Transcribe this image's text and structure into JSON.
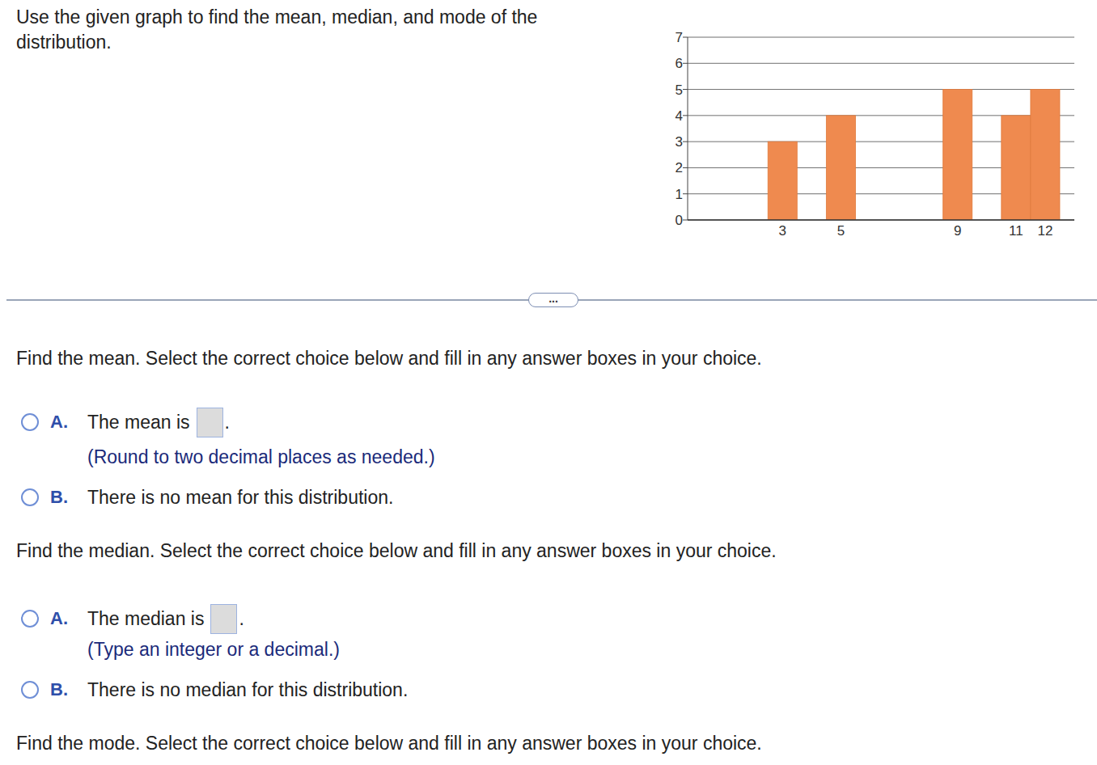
{
  "chart_data": {
    "type": "bar",
    "x": [
      3,
      5,
      9,
      11,
      12
    ],
    "values": [
      3,
      4,
      5,
      4,
      5
    ],
    "color": "#ef8a4f",
    "xlim": [
      -0.25,
      13
    ],
    "xticks": [
      3,
      5,
      9,
      11,
      12
    ],
    "ylim": [
      0,
      7
    ],
    "yticks": [
      0,
      1,
      2,
      3,
      4,
      5,
      6,
      7
    ],
    "grid": true
  },
  "page": {
    "prompt": "Use the given graph to find the mean, median, and mode of the distribution.",
    "more_button": "...",
    "questions": [
      {
        "instruction": "Find the mean. Select the correct choice below and fill in any answer boxes in your choice.",
        "choices": [
          {
            "letter": "A.",
            "text": "The mean is",
            "after_box": ".",
            "hint": "(Round to two decimal places as needed.)"
          },
          {
            "letter": "B.",
            "text": "There is no mean for this distribution."
          }
        ]
      },
      {
        "instruction": "Find the median. Select the correct choice below and fill in any answer boxes in your choice.",
        "choices": [
          {
            "letter": "A.",
            "text": "The median is",
            "after_box": ".",
            "hint": "(Type an integer or a decimal.)"
          },
          {
            "letter": "B.",
            "text": "There is no median for this distribution."
          }
        ]
      },
      {
        "instruction": "Find the mode. Select the correct choice below and fill in any answer boxes in your choice."
      }
    ]
  }
}
